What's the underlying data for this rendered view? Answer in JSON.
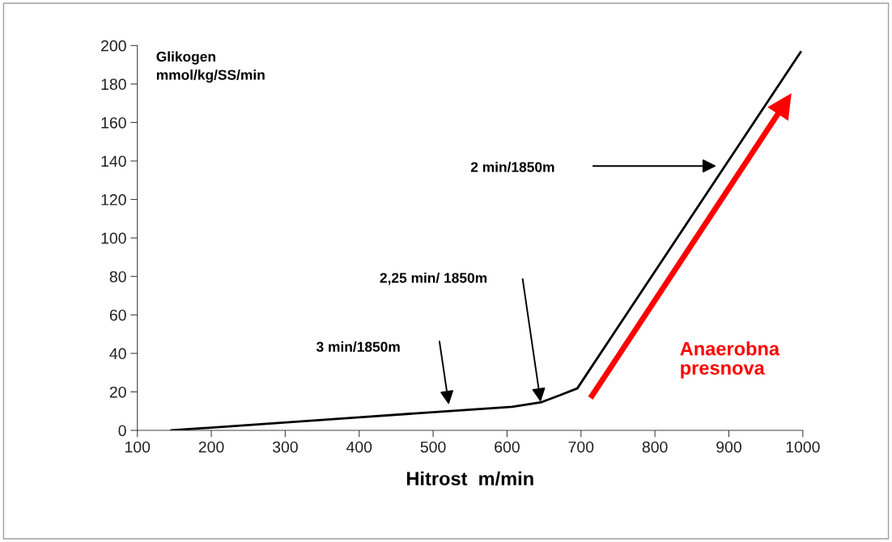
{
  "chart_data": {
    "type": "line",
    "xlabel": "Hitrost  m/min",
    "ylabel": "Glikogen\nmmol/kg/SS/min",
    "xlim": [
      100,
      1000
    ],
    "xticks": [
      100,
      200,
      300,
      400,
      500,
      600,
      700,
      800,
      900,
      1000
    ],
    "ylim": [
      0,
      200
    ],
    "yticks": [
      0,
      20,
      40,
      60,
      80,
      100,
      120,
      140,
      160,
      180,
      200
    ],
    "grid": false,
    "marker": "none",
    "line_style": "solid",
    "series": [
      {
        "color": "#000000",
        "x": [
          146,
          400,
          571,
          607,
          647,
          673,
          695,
          997
        ],
        "values": [
          0,
          6.8,
          11.3,
          12.2,
          14.7,
          18.5,
          21.8,
          196.6
        ]
      }
    ],
    "annotations": [
      "3 min/1850m",
      "2,25 min/ 1850m",
      "2 min/1850m",
      "Anaerobna\npresnova"
    ]
  }
}
